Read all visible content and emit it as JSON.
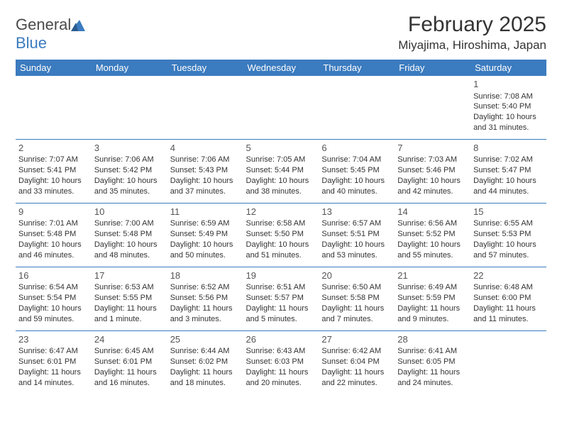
{
  "logo": {
    "text1": "General",
    "text2": "Blue"
  },
  "header": {
    "month_title": "February 2025",
    "location": "Miyajima, Hiroshima, Japan"
  },
  "colors": {
    "header_bg": "#3b7bbf",
    "header_text": "#ffffff",
    "border": "#3b7bbf",
    "body_text": "#333333",
    "logo_gray": "#4a4a4a",
    "logo_blue": "#3b7bbf"
  },
  "typography": {
    "month_title_pt": 30,
    "location_pt": 17,
    "weekday_pt": 13,
    "daynum_pt": 13,
    "cell_pt": 11
  },
  "weekdays": [
    "Sunday",
    "Monday",
    "Tuesday",
    "Wednesday",
    "Thursday",
    "Friday",
    "Saturday"
  ],
  "weeks": [
    [
      null,
      null,
      null,
      null,
      null,
      null,
      {
        "n": "1",
        "sr": "Sunrise: 7:08 AM",
        "ss": "Sunset: 5:40 PM",
        "dl": "Daylight: 10 hours and 31 minutes."
      }
    ],
    [
      {
        "n": "2",
        "sr": "Sunrise: 7:07 AM",
        "ss": "Sunset: 5:41 PM",
        "dl": "Daylight: 10 hours and 33 minutes."
      },
      {
        "n": "3",
        "sr": "Sunrise: 7:06 AM",
        "ss": "Sunset: 5:42 PM",
        "dl": "Daylight: 10 hours and 35 minutes."
      },
      {
        "n": "4",
        "sr": "Sunrise: 7:06 AM",
        "ss": "Sunset: 5:43 PM",
        "dl": "Daylight: 10 hours and 37 minutes."
      },
      {
        "n": "5",
        "sr": "Sunrise: 7:05 AM",
        "ss": "Sunset: 5:44 PM",
        "dl": "Daylight: 10 hours and 38 minutes."
      },
      {
        "n": "6",
        "sr": "Sunrise: 7:04 AM",
        "ss": "Sunset: 5:45 PM",
        "dl": "Daylight: 10 hours and 40 minutes."
      },
      {
        "n": "7",
        "sr": "Sunrise: 7:03 AM",
        "ss": "Sunset: 5:46 PM",
        "dl": "Daylight: 10 hours and 42 minutes."
      },
      {
        "n": "8",
        "sr": "Sunrise: 7:02 AM",
        "ss": "Sunset: 5:47 PM",
        "dl": "Daylight: 10 hours and 44 minutes."
      }
    ],
    [
      {
        "n": "9",
        "sr": "Sunrise: 7:01 AM",
        "ss": "Sunset: 5:48 PM",
        "dl": "Daylight: 10 hours and 46 minutes."
      },
      {
        "n": "10",
        "sr": "Sunrise: 7:00 AM",
        "ss": "Sunset: 5:48 PM",
        "dl": "Daylight: 10 hours and 48 minutes."
      },
      {
        "n": "11",
        "sr": "Sunrise: 6:59 AM",
        "ss": "Sunset: 5:49 PM",
        "dl": "Daylight: 10 hours and 50 minutes."
      },
      {
        "n": "12",
        "sr": "Sunrise: 6:58 AM",
        "ss": "Sunset: 5:50 PM",
        "dl": "Daylight: 10 hours and 51 minutes."
      },
      {
        "n": "13",
        "sr": "Sunrise: 6:57 AM",
        "ss": "Sunset: 5:51 PM",
        "dl": "Daylight: 10 hours and 53 minutes."
      },
      {
        "n": "14",
        "sr": "Sunrise: 6:56 AM",
        "ss": "Sunset: 5:52 PM",
        "dl": "Daylight: 10 hours and 55 minutes."
      },
      {
        "n": "15",
        "sr": "Sunrise: 6:55 AM",
        "ss": "Sunset: 5:53 PM",
        "dl": "Daylight: 10 hours and 57 minutes."
      }
    ],
    [
      {
        "n": "16",
        "sr": "Sunrise: 6:54 AM",
        "ss": "Sunset: 5:54 PM",
        "dl": "Daylight: 10 hours and 59 minutes."
      },
      {
        "n": "17",
        "sr": "Sunrise: 6:53 AM",
        "ss": "Sunset: 5:55 PM",
        "dl": "Daylight: 11 hours and 1 minute."
      },
      {
        "n": "18",
        "sr": "Sunrise: 6:52 AM",
        "ss": "Sunset: 5:56 PM",
        "dl": "Daylight: 11 hours and 3 minutes."
      },
      {
        "n": "19",
        "sr": "Sunrise: 6:51 AM",
        "ss": "Sunset: 5:57 PM",
        "dl": "Daylight: 11 hours and 5 minutes."
      },
      {
        "n": "20",
        "sr": "Sunrise: 6:50 AM",
        "ss": "Sunset: 5:58 PM",
        "dl": "Daylight: 11 hours and 7 minutes."
      },
      {
        "n": "21",
        "sr": "Sunrise: 6:49 AM",
        "ss": "Sunset: 5:59 PM",
        "dl": "Daylight: 11 hours and 9 minutes."
      },
      {
        "n": "22",
        "sr": "Sunrise: 6:48 AM",
        "ss": "Sunset: 6:00 PM",
        "dl": "Daylight: 11 hours and 11 minutes."
      }
    ],
    [
      {
        "n": "23",
        "sr": "Sunrise: 6:47 AM",
        "ss": "Sunset: 6:01 PM",
        "dl": "Daylight: 11 hours and 14 minutes."
      },
      {
        "n": "24",
        "sr": "Sunrise: 6:45 AM",
        "ss": "Sunset: 6:01 PM",
        "dl": "Daylight: 11 hours and 16 minutes."
      },
      {
        "n": "25",
        "sr": "Sunrise: 6:44 AM",
        "ss": "Sunset: 6:02 PM",
        "dl": "Daylight: 11 hours and 18 minutes."
      },
      {
        "n": "26",
        "sr": "Sunrise: 6:43 AM",
        "ss": "Sunset: 6:03 PM",
        "dl": "Daylight: 11 hours and 20 minutes."
      },
      {
        "n": "27",
        "sr": "Sunrise: 6:42 AM",
        "ss": "Sunset: 6:04 PM",
        "dl": "Daylight: 11 hours and 22 minutes."
      },
      {
        "n": "28",
        "sr": "Sunrise: 6:41 AM",
        "ss": "Sunset: 6:05 PM",
        "dl": "Daylight: 11 hours and 24 minutes."
      },
      null
    ]
  ]
}
